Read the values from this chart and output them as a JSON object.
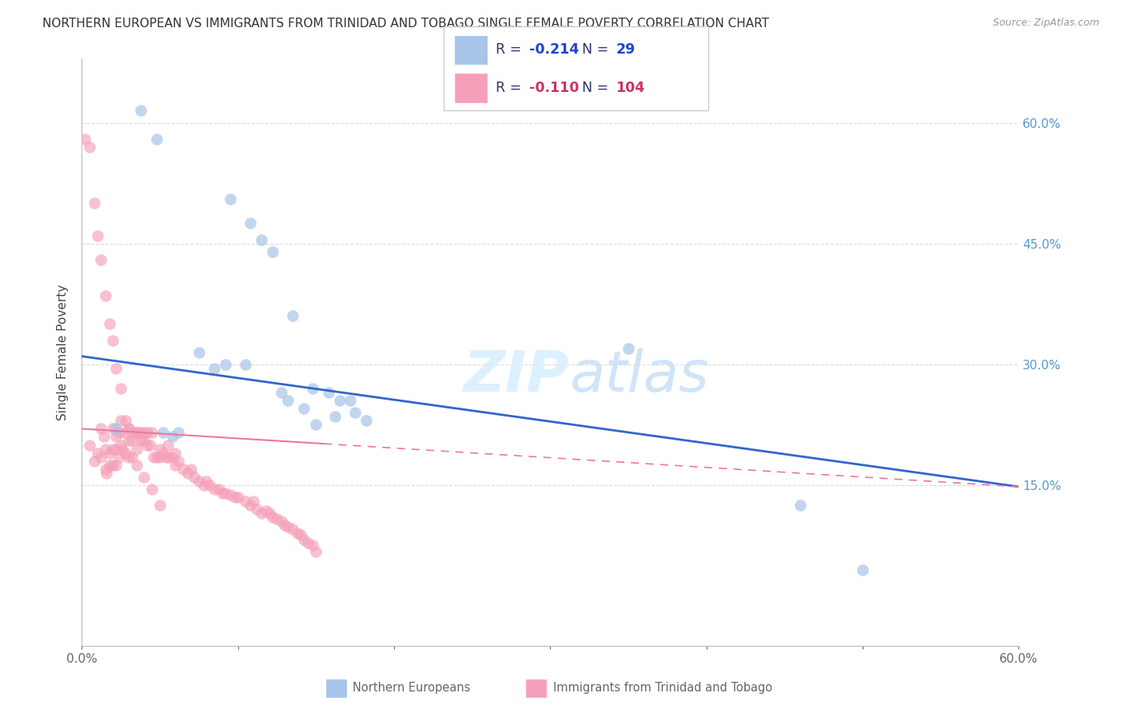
{
  "title": "NORTHERN EUROPEAN VS IMMIGRANTS FROM TRINIDAD AND TOBAGO SINGLE FEMALE POVERTY CORRELATION CHART",
  "source": "Source: ZipAtlas.com",
  "ylabel": "Single Female Poverty",
  "yticks": [
    "60.0%",
    "45.0%",
    "30.0%",
    "15.0%"
  ],
  "ytick_vals": [
    0.6,
    0.45,
    0.3,
    0.15
  ],
  "xlim": [
    0.0,
    0.6
  ],
  "ylim": [
    -0.05,
    0.68
  ],
  "blue_color": "#A8C4E8",
  "pink_color": "#F4A0B8",
  "blue_line_color": "#3366CC",
  "pink_line_color": "#EE7799",
  "grid_color": "#CCCCCC",
  "legend_label_blue": "Northern Europeans",
  "legend_label_pink": "Immigrants from Trinidad and Tobago",
  "blue_scatter_x": [
    0.022,
    0.038,
    0.048,
    0.052,
    0.058,
    0.062,
    0.075,
    0.085,
    0.092,
    0.095,
    0.105,
    0.108,
    0.115,
    0.122,
    0.128,
    0.132,
    0.135,
    0.148,
    0.15,
    0.158,
    0.162,
    0.165,
    0.172,
    0.175,
    0.182,
    0.35,
    0.46,
    0.5,
    0.142
  ],
  "blue_scatter_y": [
    0.22,
    0.615,
    0.58,
    0.215,
    0.21,
    0.215,
    0.315,
    0.295,
    0.3,
    0.505,
    0.3,
    0.475,
    0.455,
    0.44,
    0.265,
    0.255,
    0.36,
    0.27,
    0.225,
    0.265,
    0.235,
    0.255,
    0.255,
    0.24,
    0.23,
    0.32,
    0.125,
    0.045,
    0.245
  ],
  "pink_scatter_x": [
    0.002,
    0.005,
    0.008,
    0.01,
    0.012,
    0.012,
    0.014,
    0.015,
    0.015,
    0.016,
    0.018,
    0.018,
    0.02,
    0.02,
    0.02,
    0.022,
    0.022,
    0.022,
    0.024,
    0.024,
    0.025,
    0.025,
    0.026,
    0.028,
    0.028,
    0.03,
    0.03,
    0.03,
    0.032,
    0.032,
    0.034,
    0.035,
    0.035,
    0.036,
    0.038,
    0.038,
    0.04,
    0.04,
    0.042,
    0.042,
    0.044,
    0.045,
    0.046,
    0.048,
    0.05,
    0.05,
    0.052,
    0.054,
    0.055,
    0.055,
    0.058,
    0.06,
    0.06,
    0.062,
    0.065,
    0.068,
    0.07,
    0.072,
    0.075,
    0.078,
    0.08,
    0.082,
    0.085,
    0.088,
    0.09,
    0.092,
    0.095,
    0.098,
    0.1,
    0.105,
    0.108,
    0.11,
    0.112,
    0.115,
    0.118,
    0.12,
    0.122,
    0.125,
    0.128,
    0.13,
    0.132,
    0.135,
    0.138,
    0.14,
    0.142,
    0.145,
    0.148,
    0.15,
    0.005,
    0.008,
    0.01,
    0.012,
    0.015,
    0.018,
    0.02,
    0.022,
    0.025,
    0.028,
    0.03,
    0.035,
    0.04,
    0.045,
    0.05
  ],
  "pink_scatter_y": [
    0.58,
    0.2,
    0.18,
    0.19,
    0.22,
    0.185,
    0.21,
    0.195,
    0.17,
    0.165,
    0.19,
    0.175,
    0.22,
    0.195,
    0.175,
    0.21,
    0.195,
    0.175,
    0.215,
    0.185,
    0.23,
    0.2,
    0.195,
    0.215,
    0.19,
    0.22,
    0.205,
    0.185,
    0.205,
    0.185,
    0.215,
    0.215,
    0.195,
    0.215,
    0.215,
    0.205,
    0.215,
    0.205,
    0.215,
    0.2,
    0.2,
    0.215,
    0.185,
    0.185,
    0.195,
    0.185,
    0.19,
    0.185,
    0.2,
    0.185,
    0.185,
    0.19,
    0.175,
    0.18,
    0.17,
    0.165,
    0.17,
    0.16,
    0.155,
    0.15,
    0.155,
    0.15,
    0.145,
    0.145,
    0.14,
    0.14,
    0.138,
    0.135,
    0.135,
    0.13,
    0.125,
    0.13,
    0.12,
    0.115,
    0.118,
    0.115,
    0.11,
    0.108,
    0.105,
    0.1,
    0.098,
    0.095,
    0.09,
    0.088,
    0.082,
    0.078,
    0.075,
    0.068,
    0.57,
    0.5,
    0.46,
    0.43,
    0.385,
    0.35,
    0.33,
    0.295,
    0.27,
    0.23,
    0.22,
    0.175,
    0.16,
    0.145,
    0.125
  ],
  "blue_line_x0": 0.0,
  "blue_line_y0": 0.31,
  "blue_line_x1": 0.6,
  "blue_line_y1": 0.148,
  "pink_line_x0": 0.0,
  "pink_line_y0": 0.22,
  "pink_line_x1": 0.6,
  "pink_line_y1": 0.148
}
